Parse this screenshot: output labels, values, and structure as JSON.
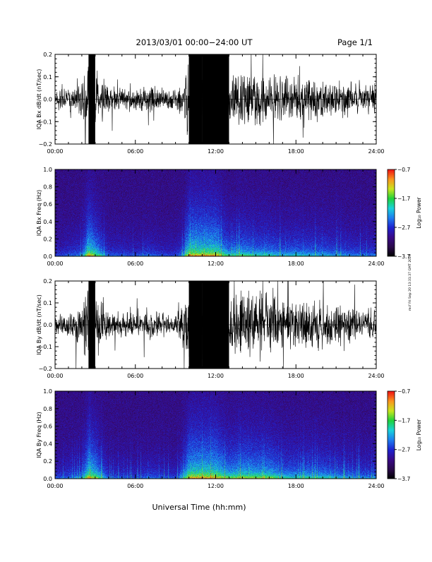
{
  "header": {
    "title": "2013/03/01   00:00−24:00 UT",
    "page": "Page 1/1"
  },
  "footer": {
    "xlabel": "Universal Time (hh:mm)",
    "side_note": "mcf Fri Sep 20 13:31:37 GMT 2019"
  },
  "colormap": {
    "stops": [
      "#000000",
      "#2a0a4a",
      "#3a0a88",
      "#1e22d0",
      "#1e7cf0",
      "#19d2dc",
      "#1ed23c",
      "#c8e61e",
      "#fa961e",
      "#f01414"
    ]
  },
  "chart_data": [
    {
      "type": "line",
      "ylabel": "IQA Bx dB/dt (nT/sec)",
      "ylim": [
        -0.2,
        0.2
      ],
      "yticks": [
        "0.2",
        "0.1",
        "0.0",
        "−0.1",
        "−0.2"
      ],
      "xticks": [
        "00:00",
        "06:00",
        "12:00",
        "18:00",
        "24:00"
      ],
      "x_range_hours": [
        0,
        24
      ],
      "envelope": {
        "hour": [
          0,
          1,
          2,
          2.5,
          3,
          4,
          5,
          6,
          7,
          8,
          9,
          9.5,
          10,
          11,
          12,
          13,
          14,
          15,
          16,
          17,
          18,
          19,
          20,
          21,
          22,
          23,
          24
        ],
        "amplitude": [
          0.04,
          0.06,
          0.08,
          0.2,
          0.16,
          0.06,
          0.06,
          0.05,
          0.07,
          0.05,
          0.05,
          0.08,
          0.2,
          0.2,
          0.2,
          0.12,
          0.14,
          0.12,
          0.12,
          0.1,
          0.11,
          0.1,
          0.1,
          0.09,
          0.08,
          0.07,
          0.07
        ]
      }
    },
    {
      "type": "heatmap",
      "ylabel": "IQA Bx Freq (Hz)",
      "ylim": [
        0,
        1.0
      ],
      "yticks": [
        "1.0",
        "0.8",
        "0.6",
        "0.4",
        "0.2",
        "0.0"
      ],
      "xticks": [
        "00:00",
        "06:00",
        "12:00",
        "18:00",
        "24:00"
      ],
      "colorbar_label": "Log₁₀ Power",
      "colorbar_ticks": [
        "−0.7",
        "−1.7",
        "−2.7",
        "−3.7"
      ],
      "clim": [
        -3.7,
        -0.7
      ]
    },
    {
      "type": "line",
      "ylabel": "IQA By dB/dt (nT/sec)",
      "ylim": [
        -0.2,
        0.2
      ],
      "yticks": [
        "0.2",
        "0.1",
        "0.0",
        "−0.1",
        "−0.2"
      ],
      "xticks": [
        "00:00",
        "06:00",
        "12:00",
        "18:00",
        "24:00"
      ],
      "x_range_hours": [
        0,
        24
      ],
      "envelope": {
        "hour": [
          0,
          1,
          2,
          2.5,
          3,
          4,
          5,
          6,
          7,
          8,
          9,
          9.5,
          10,
          11,
          12,
          13,
          14,
          15,
          16,
          17,
          18,
          19,
          20,
          21,
          22,
          23,
          24
        ],
        "amplitude": [
          0.05,
          0.07,
          0.09,
          0.2,
          0.17,
          0.06,
          0.06,
          0.05,
          0.07,
          0.06,
          0.05,
          0.1,
          0.2,
          0.2,
          0.2,
          0.15,
          0.17,
          0.16,
          0.16,
          0.12,
          0.12,
          0.12,
          0.12,
          0.1,
          0.09,
          0.08,
          0.08
        ]
      }
    },
    {
      "type": "heatmap",
      "ylabel": "IQA By Freq (Hz)",
      "ylim": [
        0,
        1.0
      ],
      "yticks": [
        "1.0",
        "0.8",
        "0.6",
        "0.4",
        "0.2",
        "0.0"
      ],
      "xticks": [
        "00:00",
        "06:00",
        "12:00",
        "18:00",
        "24:00"
      ],
      "colorbar_label": "Log₁₀ Power",
      "colorbar_ticks": [
        "−0.7",
        "−1.7",
        "−2.7",
        "−3.7"
      ],
      "clim": [
        -3.7,
        -0.7
      ]
    }
  ]
}
